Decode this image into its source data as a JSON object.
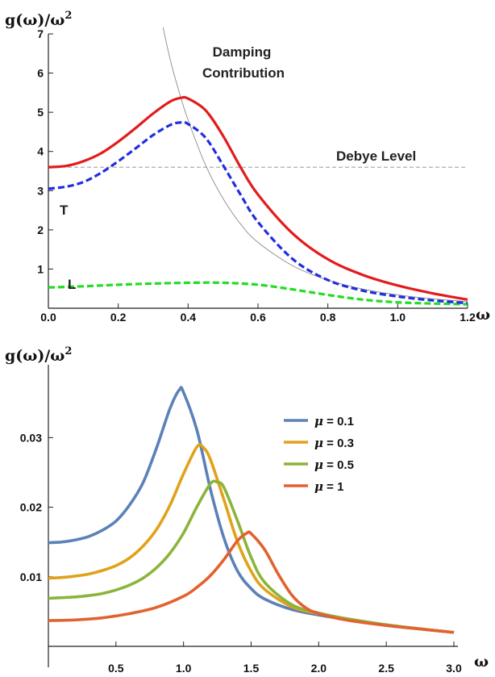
{
  "chart_data": [
    {
      "type": "line",
      "ylabel": {
        "base": "g(ω)/ω",
        "sup": "2"
      },
      "xlabel": "ω",
      "xlim": [
        0,
        1.2
      ],
      "ylim": [
        0,
        7
      ],
      "xticks": [
        0.0,
        0.2,
        0.4,
        0.6,
        0.8,
        1.0,
        1.2
      ],
      "xtick_labels": [
        "0.0",
        "0.2",
        "0.4",
        "0.6",
        "0.8",
        "1.0",
        "1.2"
      ],
      "yticks": [
        1,
        2,
        3,
        4,
        5,
        6,
        7
      ],
      "ytick_labels": [
        "1",
        "2",
        "3",
        "4",
        "5",
        "6",
        "7"
      ],
      "annotations": {
        "damping_line1": "Damping",
        "damping_line2": "Contribution",
        "debye": "Debye Level",
        "T": "T",
        "L": "L"
      },
      "series": [
        {
          "key": "total",
          "color": "#e31b1b",
          "style": "solid",
          "x": [
            0,
            0.05,
            0.1,
            0.15,
            0.2,
            0.25,
            0.3,
            0.35,
            0.38,
            0.4,
            0.45,
            0.5,
            0.55,
            0.6,
            0.7,
            0.8,
            0.9,
            1.0,
            1.1,
            1.2
          ],
          "y": [
            3.6,
            3.63,
            3.75,
            3.95,
            4.25,
            4.6,
            4.97,
            5.28,
            5.37,
            5.35,
            5.05,
            4.4,
            3.6,
            2.9,
            1.9,
            1.25,
            0.85,
            0.58,
            0.38,
            0.22
          ]
        },
        {
          "key": "T",
          "color": "#1f2ee0",
          "style": "dashed",
          "x": [
            0,
            0.05,
            0.1,
            0.15,
            0.2,
            0.25,
            0.3,
            0.35,
            0.38,
            0.4,
            0.45,
            0.5,
            0.55,
            0.6,
            0.7,
            0.8,
            0.9,
            1.0,
            1.1,
            1.2
          ],
          "y": [
            3.05,
            3.1,
            3.22,
            3.45,
            3.75,
            4.08,
            4.42,
            4.68,
            4.74,
            4.7,
            4.35,
            3.65,
            2.9,
            2.2,
            1.25,
            0.72,
            0.45,
            0.3,
            0.2,
            0.13
          ]
        },
        {
          "key": "L",
          "color": "#22dd22",
          "style": "dashed",
          "x": [
            0,
            0.1,
            0.2,
            0.3,
            0.4,
            0.5,
            0.6,
            0.7,
            0.8,
            0.9,
            1.0,
            1.1,
            1.2
          ],
          "y": [
            0.53,
            0.56,
            0.6,
            0.63,
            0.65,
            0.65,
            0.6,
            0.48,
            0.34,
            0.22,
            0.15,
            0.12,
            0.1
          ]
        },
        {
          "key": "damping",
          "color": "#8a8a8a",
          "style": "thin",
          "x": [
            0.325,
            0.35,
            0.375,
            0.4,
            0.45,
            0.5,
            0.55,
            0.6,
            0.7,
            0.8,
            0.9,
            1.0,
            1.1,
            1.2
          ],
          "y": [
            7.3,
            6.3,
            5.5,
            4.8,
            3.65,
            2.8,
            2.15,
            1.68,
            1.08,
            0.72,
            0.49,
            0.34,
            0.24,
            0.17
          ]
        },
        {
          "key": "debye",
          "color": "#8a8a8a",
          "style": "thin-dashed",
          "x": [
            0,
            1.2
          ],
          "y": [
            3.6,
            3.6
          ]
        }
      ]
    },
    {
      "type": "line",
      "ylabel": {
        "base": "g(ω)/ω",
        "sup": "2"
      },
      "xlabel": "ω",
      "xlim": [
        0,
        3.0
      ],
      "ylim": [
        0,
        0.037
      ],
      "xticks": [
        0.5,
        1.0,
        1.5,
        2.0,
        2.5,
        3.0
      ],
      "xtick_labels": [
        "0.5",
        "1.0",
        "1.5",
        "2.0",
        "2.5",
        "3.0"
      ],
      "yticks": [
        0.01,
        0.02,
        0.03
      ],
      "ytick_labels": [
        "0.01",
        "0.02",
        "0.03"
      ],
      "legend_position": "top-right",
      "series": [
        {
          "name": "μ = 0.1",
          "label_mu": "μ",
          "label_rest": " = 0.1",
          "color": "#5b81b8",
          "x": [
            0,
            0.1,
            0.2,
            0.3,
            0.4,
            0.5,
            0.6,
            0.7,
            0.8,
            0.9,
            0.97,
            1.0,
            1.1,
            1.2,
            1.3,
            1.4,
            1.5,
            1.6,
            1.8,
            2.0,
            2.2,
            2.5,
            2.8,
            3.0
          ],
          "y": [
            0.0149,
            0.015,
            0.0153,
            0.0158,
            0.0167,
            0.018,
            0.0203,
            0.0235,
            0.0285,
            0.0342,
            0.0369,
            0.0365,
            0.031,
            0.0225,
            0.0155,
            0.0108,
            0.0083,
            0.0068,
            0.0053,
            0.0045,
            0.0039,
            0.003,
            0.0024,
            0.002
          ]
        },
        {
          "name": "μ = 0.3",
          "label_mu": "μ",
          "label_rest": " = 0.3",
          "color": "#e0a21a",
          "x": [
            0,
            0.1,
            0.2,
            0.3,
            0.4,
            0.5,
            0.6,
            0.7,
            0.8,
            0.9,
            1.0,
            1.1,
            1.15,
            1.2,
            1.3,
            1.4,
            1.5,
            1.6,
            1.8,
            2.0,
            2.2,
            2.5,
            2.8,
            3.0
          ],
          "y": [
            0.0098,
            0.0099,
            0.0101,
            0.0104,
            0.0109,
            0.0116,
            0.0127,
            0.0144,
            0.0168,
            0.0203,
            0.0248,
            0.0287,
            0.0285,
            0.0268,
            0.021,
            0.015,
            0.0108,
            0.0082,
            0.0057,
            0.0047,
            0.004,
            0.0031,
            0.0024,
            0.002
          ]
        },
        {
          "name": "μ = 0.5",
          "label_mu": "μ",
          "label_rest": " = 0.5",
          "color": "#8cb43a",
          "x": [
            0,
            0.1,
            0.2,
            0.3,
            0.4,
            0.5,
            0.6,
            0.7,
            0.8,
            0.9,
            1.0,
            1.1,
            1.2,
            1.25,
            1.3,
            1.4,
            1.5,
            1.6,
            1.8,
            2.0,
            2.2,
            2.5,
            2.8,
            3.0
          ],
          "y": [
            0.0069,
            0.007,
            0.0071,
            0.0073,
            0.0076,
            0.0081,
            0.0088,
            0.0098,
            0.0113,
            0.0134,
            0.0163,
            0.0201,
            0.0234,
            0.0236,
            0.0228,
            0.018,
            0.0128,
            0.0092,
            0.006,
            0.0048,
            0.004,
            0.0031,
            0.0024,
            0.002
          ]
        },
        {
          "name": "μ = 1",
          "label_mu": "μ",
          "label_rest": " = 1",
          "color": "#e2622f",
          "x": [
            0,
            0.2,
            0.4,
            0.6,
            0.8,
            1.0,
            1.1,
            1.2,
            1.3,
            1.4,
            1.47,
            1.5,
            1.6,
            1.7,
            1.8,
            1.9,
            2.0,
            2.2,
            2.5,
            2.8,
            3.0
          ],
          "y": [
            0.0037,
            0.0038,
            0.0041,
            0.0047,
            0.0056,
            0.0072,
            0.0085,
            0.0102,
            0.0125,
            0.0152,
            0.0163,
            0.0162,
            0.0139,
            0.0104,
            0.0074,
            0.0056,
            0.0047,
            0.0038,
            0.003,
            0.0024,
            0.002
          ]
        }
      ]
    }
  ]
}
